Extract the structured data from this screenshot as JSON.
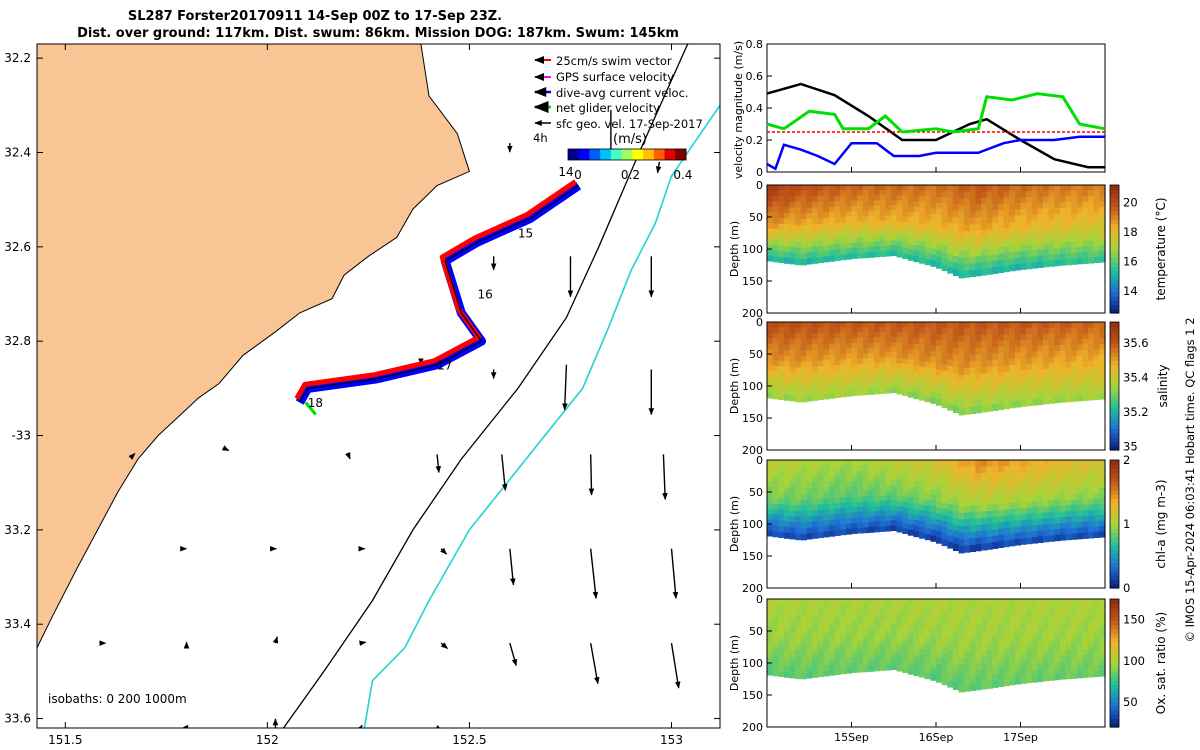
{
  "title": {
    "line1": "SL287 Forster20170911 14-Sep 00Z to 17-Sep 23Z.",
    "line2": "Dist. over ground: 117km. Dist. swum: 86km. Mission DOG: 187km. Swum: 145km"
  },
  "colors": {
    "land": "#f9c594",
    "isobath200": "#000000",
    "isobath1000": "#22d3d3",
    "swim": "#ff0000",
    "gps": "#ff00ff",
    "dive": "#0000ff",
    "net": "#00e000"
  },
  "chart_data": [
    {
      "type": "map",
      "xlim": [
        151.43,
        153.12
      ],
      "ylim": [
        -33.62,
        -32.17
      ],
      "yaxis_note": "latitude south, labels printed as shown",
      "xticks": [
        {
          "v": 151.5,
          "label": "151.5"
        },
        {
          "v": 152.0,
          "label": "152"
        },
        {
          "v": 152.5,
          "label": "152.5"
        },
        {
          "v": 153.0,
          "label": "153"
        }
      ],
      "yticks": [
        {
          "v": -32.2,
          "label": "32.2"
        },
        {
          "v": -32.4,
          "label": "32.4"
        },
        {
          "v": -32.6,
          "label": "32.6"
        },
        {
          "v": -32.8,
          "label": "32.8"
        },
        {
          "v": -33.0,
          "label": "-33"
        },
        {
          "v": -33.2,
          "label": "33.2"
        },
        {
          "v": -33.4,
          "label": "33.4"
        },
        {
          "v": -33.6,
          "label": "33.6"
        }
      ],
      "legend": {
        "position": "top-right",
        "entries": [
          {
            "label": "25cm/s swim vector",
            "color": "#ff0000"
          },
          {
            "label": "GPS surface velocity",
            "color": "#ff00ff"
          },
          {
            "label": "dive-avg current veloc.",
            "color": "#0000ff"
          },
          {
            "label": "net glider velocity",
            "color": "#00e000"
          },
          {
            "label": "sfc geo. vel. 17-Sep-2017",
            "color": "#000000"
          }
        ]
      },
      "colorbar": {
        "label": "(m/s)",
        "prefix": "4h",
        "ticks": [
          "0",
          "0.2",
          "0.4"
        ],
        "range": [
          0,
          0.45
        ]
      },
      "isobath_label": "isobaths: 0   200  1000m",
      "track": [
        [
          152.77,
          -32.47
        ],
        [
          152.65,
          -32.54
        ],
        [
          152.52,
          -32.59
        ],
        [
          152.44,
          -32.63
        ],
        [
          152.48,
          -32.74
        ],
        [
          152.53,
          -32.8
        ],
        [
          152.42,
          -32.85
        ],
        [
          152.27,
          -32.88
        ],
        [
          152.1,
          -32.9
        ],
        [
          152.08,
          -32.93
        ]
      ],
      "day_labels": [
        {
          "label": "14",
          "lon": 152.72,
          "lat": -32.45
        },
        {
          "label": "15",
          "lon": 152.62,
          "lat": -32.58
        },
        {
          "label": "16",
          "lon": 152.52,
          "lat": -32.71
        },
        {
          "label": "17",
          "lon": 152.42,
          "lat": -32.86
        },
        {
          "label": "18",
          "lon": 152.1,
          "lat": -32.94
        }
      ],
      "coast": [
        [
          151.43,
          -32.17
        ],
        [
          152.38,
          -32.17
        ],
        [
          152.4,
          -32.28
        ],
        [
          152.47,
          -32.36
        ],
        [
          152.5,
          -32.44
        ],
        [
          152.42,
          -32.47
        ],
        [
          152.36,
          -32.52
        ],
        [
          152.32,
          -32.58
        ],
        [
          152.25,
          -32.62
        ],
        [
          152.19,
          -32.66
        ],
        [
          152.16,
          -32.71
        ],
        [
          152.08,
          -32.74
        ],
        [
          152.02,
          -32.78
        ],
        [
          151.94,
          -32.83
        ],
        [
          151.88,
          -32.89
        ],
        [
          151.83,
          -32.92
        ],
        [
          151.78,
          -32.96
        ],
        [
          151.73,
          -33.0
        ],
        [
          151.68,
          -33.05
        ],
        [
          151.63,
          -33.12
        ],
        [
          151.58,
          -33.2
        ],
        [
          151.53,
          -33.28
        ],
        [
          151.47,
          -33.38
        ],
        [
          151.43,
          -33.45
        ]
      ],
      "isobath200": [
        [
          153.04,
          -32.17
        ],
        [
          152.92,
          -32.4
        ],
        [
          152.82,
          -32.6
        ],
        [
          152.74,
          -32.75
        ],
        [
          152.62,
          -32.9
        ],
        [
          152.48,
          -33.05
        ],
        [
          152.36,
          -33.2
        ],
        [
          152.26,
          -33.35
        ],
        [
          152.14,
          -33.5
        ],
        [
          152.04,
          -33.62
        ]
      ],
      "isobath1000": [
        [
          153.12,
          -32.3
        ],
        [
          153.0,
          -32.45
        ],
        [
          152.96,
          -32.55
        ],
        [
          152.9,
          -32.65
        ],
        [
          152.84,
          -32.78
        ],
        [
          152.78,
          -32.9
        ],
        [
          152.64,
          -33.05
        ],
        [
          152.5,
          -33.2
        ],
        [
          152.4,
          -33.35
        ],
        [
          152.34,
          -33.45
        ],
        [
          152.26,
          -33.52
        ],
        [
          152.24,
          -33.62
        ]
      ],
      "geo_vectors": [
        {
          "lon": 152.85,
          "lat": -32.31,
          "u": 0.0,
          "v": -0.5
        },
        {
          "lon": 152.6,
          "lat": -32.38,
          "u": 0.0,
          "v": -0.1
        },
        {
          "lon": 152.97,
          "lat": -32.42,
          "u": -0.02,
          "v": -0.12
        },
        {
          "lon": 152.75,
          "lat": -32.62,
          "u": 0.0,
          "v": -0.45
        },
        {
          "lon": 152.95,
          "lat": -32.62,
          "u": 0.0,
          "v": -0.45
        },
        {
          "lon": 152.56,
          "lat": -32.62,
          "u": 0.0,
          "v": -0.15
        },
        {
          "lon": 152.74,
          "lat": -32.85,
          "u": -0.02,
          "v": -0.5
        },
        {
          "lon": 152.95,
          "lat": -32.86,
          "u": 0.0,
          "v": -0.5
        },
        {
          "lon": 152.56,
          "lat": -32.86,
          "u": 0.0,
          "v": -0.1
        },
        {
          "lon": 152.38,
          "lat": -32.84,
          "u": 0.0,
          "v": -0.05
        },
        {
          "lon": 152.2,
          "lat": -33.04,
          "u": 0.02,
          "v": -0.05
        },
        {
          "lon": 152.42,
          "lat": -33.04,
          "u": 0.02,
          "v": -0.2
        },
        {
          "lon": 152.58,
          "lat": -33.04,
          "u": 0.04,
          "v": -0.4
        },
        {
          "lon": 152.8,
          "lat": -33.04,
          "u": 0.01,
          "v": -0.45
        },
        {
          "lon": 152.98,
          "lat": -33.04,
          "u": 0.02,
          "v": -0.5
        },
        {
          "lon": 151.9,
          "lat": -33.03,
          "u": 0.02,
          "v": -0.01
        },
        {
          "lon": 151.67,
          "lat": -33.04,
          "u": 0.01,
          "v": 0.01
        },
        {
          "lon": 152.02,
          "lat": -33.24,
          "u": 0.01,
          "v": 0.0
        },
        {
          "lon": 152.23,
          "lat": -33.24,
          "u": 0.05,
          "v": 0.0
        },
        {
          "lon": 152.43,
          "lat": -33.24,
          "u": 0.06,
          "v": -0.06
        },
        {
          "lon": 152.6,
          "lat": -33.24,
          "u": 0.04,
          "v": -0.4
        },
        {
          "lon": 152.8,
          "lat": -33.24,
          "u": 0.06,
          "v": -0.55
        },
        {
          "lon": 153.0,
          "lat": -33.24,
          "u": 0.05,
          "v": -0.55
        },
        {
          "lon": 151.8,
          "lat": -33.24,
          "u": 0.0,
          "v": 0.0
        },
        {
          "lon": 151.6,
          "lat": -33.44,
          "u": 0.0,
          "v": 0.0
        },
        {
          "lon": 151.8,
          "lat": -33.44,
          "u": 0.0,
          "v": 0.01
        },
        {
          "lon": 152.02,
          "lat": -33.44,
          "u": 0.02,
          "v": 0.07
        },
        {
          "lon": 152.23,
          "lat": -33.44,
          "u": 0.06,
          "v": 0.01
        },
        {
          "lon": 152.43,
          "lat": -33.44,
          "u": 0.07,
          "v": -0.06
        },
        {
          "lon": 152.6,
          "lat": -33.44,
          "u": 0.07,
          "v": -0.25
        },
        {
          "lon": 152.8,
          "lat": -33.44,
          "u": 0.08,
          "v": -0.45
        },
        {
          "lon": 153.0,
          "lat": -33.44,
          "u": 0.08,
          "v": -0.5
        },
        {
          "lon": 151.8,
          "lat": -33.62,
          "u": 0.02,
          "v": -0.04
        },
        {
          "lon": 152.02,
          "lat": -33.62,
          "u": 0.0,
          "v": 0.1
        },
        {
          "lon": 152.23,
          "lat": -33.62,
          "u": 0.02,
          "v": 0.03
        },
        {
          "lon": 152.42,
          "lat": -33.62,
          "u": 0.05,
          "v": -0.03
        }
      ]
    },
    {
      "type": "line",
      "ylabel": "velocity magnitude (m/s)",
      "ylim": [
        0,
        0.8
      ],
      "yticks": [
        "0",
        "0.2",
        "0.4",
        "0.6",
        "0.8"
      ],
      "xlim": [
        14.0,
        18.0
      ],
      "series": [
        {
          "color": "#000000",
          "values": [
            [
              14.0,
              0.49
            ],
            [
              14.4,
              0.55
            ],
            [
              14.8,
              0.48
            ],
            [
              15.2,
              0.35
            ],
            [
              15.6,
              0.2
            ],
            [
              16.0,
              0.2
            ],
            [
              16.4,
              0.3
            ],
            [
              16.6,
              0.33
            ],
            [
              17.0,
              0.2
            ],
            [
              17.4,
              0.08
            ],
            [
              17.8,
              0.03
            ],
            [
              18.0,
              0.03
            ]
          ]
        },
        {
          "color": "#ff0000",
          "values": [
            [
              14.0,
              0.25
            ],
            [
              18.0,
              0.25
            ]
          ]
        },
        {
          "color": "#00e000",
          "values": [
            [
              14.0,
              0.3
            ],
            [
              14.2,
              0.27
            ],
            [
              14.5,
              0.38
            ],
            [
              14.8,
              0.36
            ],
            [
              14.9,
              0.27
            ],
            [
              15.2,
              0.27
            ],
            [
              15.4,
              0.35
            ],
            [
              15.6,
              0.25
            ],
            [
              15.8,
              0.26
            ],
            [
              16.0,
              0.27
            ],
            [
              16.2,
              0.25
            ],
            [
              16.5,
              0.27
            ],
            [
              16.6,
              0.47
            ],
            [
              16.9,
              0.45
            ],
            [
              17.2,
              0.49
            ],
            [
              17.5,
              0.47
            ],
            [
              17.7,
              0.3
            ],
            [
              18.0,
              0.27
            ]
          ]
        },
        {
          "color": "#0000ff",
          "values": [
            [
              14.0,
              0.05
            ],
            [
              14.1,
              0.02
            ],
            [
              14.2,
              0.17
            ],
            [
              14.4,
              0.14
            ],
            [
              14.6,
              0.1
            ],
            [
              14.8,
              0.05
            ],
            [
              15.0,
              0.18
            ],
            [
              15.3,
              0.18
            ],
            [
              15.5,
              0.1
            ],
            [
              15.8,
              0.1
            ],
            [
              16.0,
              0.12
            ],
            [
              16.5,
              0.12
            ],
            [
              16.8,
              0.18
            ],
            [
              17.0,
              0.2
            ],
            [
              17.4,
              0.2
            ],
            [
              17.7,
              0.22
            ],
            [
              18.0,
              0.22
            ]
          ]
        }
      ]
    },
    {
      "type": "heatmap",
      "ylabel": "Depth (m)",
      "ylim": [
        0,
        200
      ],
      "yticks": [
        "0",
        "50",
        "100",
        "150",
        "200"
      ],
      "colorbar_label": "temperature (°C)",
      "colorbar_ticks": [
        "14",
        "16",
        "18",
        "20"
      ],
      "colorbar_range": [
        12.5,
        21.2
      ],
      "colorscale": [
        "#0b1a7a",
        "#1f6fd6",
        "#22c09a",
        "#a6d43a",
        "#f0b32a",
        "#c1561a",
        "#8f2c0b"
      ],
      "profile": [
        {
          "t": 14.0,
          "top": 20.7,
          "mid": 19.0,
          "bot": 15.0
        },
        {
          "t": 14.3,
          "top": 20.2,
          "mid": 18.5,
          "bot": 15.0
        },
        {
          "t": 15.0,
          "top": 19.6,
          "mid": 18.3,
          "bot": 15.2
        },
        {
          "t": 15.5,
          "top": 19.5,
          "mid": 18.4,
          "bot": 15.2
        },
        {
          "t": 16.0,
          "top": 19.4,
          "mid": 18.2,
          "bot": 15.1
        },
        {
          "t": 16.5,
          "top": 19.8,
          "mid": 18.5,
          "bot": 15.0
        },
        {
          "t": 17.0,
          "top": 19.5,
          "mid": 18.2,
          "bot": 15.0
        },
        {
          "t": 17.5,
          "top": 19.3,
          "mid": 18.0,
          "bot": 15.3
        },
        {
          "t": 18.0,
          "top": 19.2,
          "mid": 17.9,
          "bot": 15.5
        }
      ]
    },
    {
      "type": "heatmap",
      "ylabel": "Depth (m)",
      "ylim": [
        0,
        200
      ],
      "yticks": [
        "0",
        "50",
        "100",
        "150",
        "200"
      ],
      "colorbar_label": "salinity",
      "colorbar_ticks": [
        "35",
        "35.2",
        "35.4",
        "35.6"
      ],
      "colorbar_range": [
        34.98,
        35.72
      ],
      "colorscale": [
        "#0b1a7a",
        "#1f6fd6",
        "#22c09a",
        "#a6d43a",
        "#f0b32a",
        "#c1561a",
        "#8f2c0b"
      ],
      "profile": [
        {
          "t": 14.0,
          "top": 35.62,
          "mid": 35.52,
          "bot": 35.32
        },
        {
          "t": 15.0,
          "top": 35.6,
          "mid": 35.5,
          "bot": 35.34
        },
        {
          "t": 16.0,
          "top": 35.6,
          "mid": 35.52,
          "bot": 35.3
        },
        {
          "t": 17.0,
          "top": 35.6,
          "mid": 35.5,
          "bot": 35.32
        },
        {
          "t": 18.0,
          "top": 35.58,
          "mid": 35.48,
          "bot": 35.34
        }
      ]
    },
    {
      "type": "heatmap",
      "ylabel": "Depth (m)",
      "ylim": [
        0,
        200
      ],
      "yticks": [
        "0",
        "50",
        "100",
        "150",
        "200"
      ],
      "colorbar_label": "chl-a (mg m-3)",
      "colorbar_ticks": [
        "0",
        "1",
        "2"
      ],
      "colorbar_range": [
        0,
        2
      ],
      "colorscale": [
        "#0b1a7a",
        "#1f6fd6",
        "#22c09a",
        "#a6d43a",
        "#f0b32a",
        "#c1561a",
        "#8f2c0b"
      ],
      "profile": [
        {
          "t": 14.0,
          "top": 1.1,
          "mid": 0.9,
          "bot": 0.15
        },
        {
          "t": 15.0,
          "top": 1.0,
          "mid": 0.8,
          "bot": 0.15
        },
        {
          "t": 16.0,
          "top": 1.2,
          "mid": 0.9,
          "bot": 0.1
        },
        {
          "t": 16.5,
          "top": 1.5,
          "mid": 1.0,
          "bot": 0.1
        },
        {
          "t": 17.0,
          "top": 1.4,
          "mid": 1.0,
          "bot": 0.15
        },
        {
          "t": 18.0,
          "top": 1.2,
          "mid": 0.9,
          "bot": 0.15
        }
      ]
    },
    {
      "type": "heatmap",
      "ylabel": "Depth (m)",
      "ylim": [
        0,
        200
      ],
      "yticks": [
        "0",
        "50",
        "100",
        "150",
        "200"
      ],
      "xticks": [
        "15Sep",
        "16Sep",
        "17Sep"
      ],
      "colorbar_label": "Ox. sat. ratio (%)",
      "colorbar_ticks": [
        "50",
        "100",
        "150"
      ],
      "colorbar_range": [
        20,
        175
      ],
      "colorscale": [
        "#0b1a7a",
        "#1f6fd6",
        "#22c09a",
        "#a6d43a",
        "#f0b32a",
        "#c1561a",
        "#8f2c0b"
      ],
      "profile": [
        {
          "t": 14.0,
          "top": 100,
          "mid": 95,
          "bot": 82
        },
        {
          "t": 15.0,
          "top": 99,
          "mid": 95,
          "bot": 84
        },
        {
          "t": 16.0,
          "top": 100,
          "mid": 95,
          "bot": 82
        },
        {
          "t": 17.0,
          "top": 100,
          "mid": 96,
          "bot": 85
        },
        {
          "t": 18.0,
          "top": 100,
          "mid": 96,
          "bot": 85
        }
      ]
    }
  ],
  "side_note": "© IMOS 15-Apr-2024 06:03:41 Hobart time. QC flags 1  2"
}
